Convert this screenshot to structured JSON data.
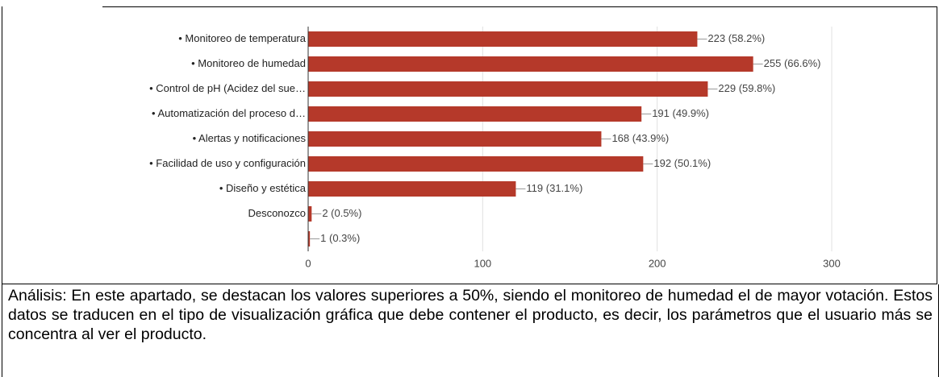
{
  "chart_data": {
    "type": "bar",
    "orientation": "horizontal",
    "categories": [
      "• Monitoreo de temperatura",
      "• Monitoreo de humedad",
      "• Control de pH (Acidez del sue…",
      "• Automatización del proceso d…",
      "• Alertas y notificaciones",
      "• Facilidad de uso y configuración",
      "• Diseño y estética",
      "Desconozco",
      null
    ],
    "values": [
      223,
      255,
      229,
      191,
      168,
      192,
      119,
      2,
      1
    ],
    "value_labels": [
      "223 (58.2%)",
      "255 (66.6%)",
      "229 (59.8%)",
      "191 (49.9%)",
      "168 (43.9%)",
      "192 (50.1%)",
      "119 (31.1%)",
      "2 (0.5%)",
      "1 (0.3%)"
    ],
    "color": "#b5392a",
    "xlim": [
      0,
      300
    ],
    "xticks": [
      0,
      100,
      200,
      300
    ],
    "grid": true
  },
  "analysis": "Análisis: En este apartado, se destacan los valores superiores a 50%, siendo el monitoreo de humedad el de mayor votación. Estos datos se traducen en el tipo de visualización gráfica que debe contener el producto, es decir, los parámetros que el usuario más se concentra al ver el producto."
}
